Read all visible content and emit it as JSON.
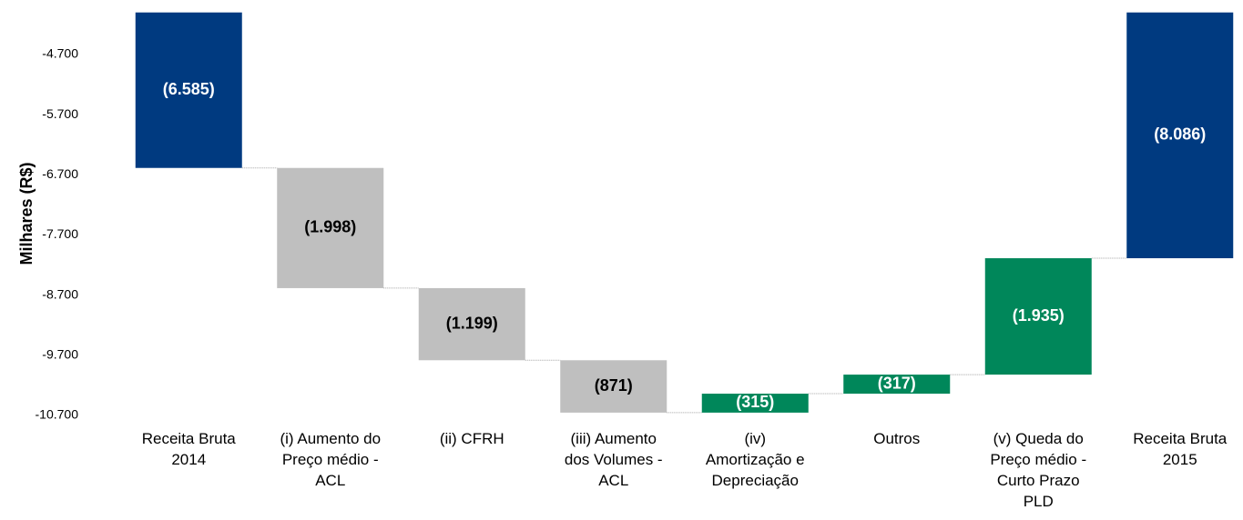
{
  "chart_data": {
    "type": "waterfall",
    "y_axis_label": "Milhares (R$)",
    "categories": [
      "Receita Bruta\n2014",
      "(i) Aumento do\nPreço médio -\nACL",
      "(ii) CFRH",
      "(iii) Aumento\ndos Volumes -\nACL",
      "(iv)\nAmortização e\nDepreciação",
      "Outros",
      "(v) Queda do\nPreço médio -\nCurto Prazo\nPLD",
      "Receita Bruta\n2015"
    ],
    "measure": [
      "total",
      "relative",
      "relative",
      "relative",
      "relative",
      "relative",
      "relative",
      "total"
    ],
    "values": [
      -6585,
      -1998,
      -1199,
      -871,
      315,
      317,
      1935,
      -8086
    ],
    "value_labels": [
      "(6.585)",
      "(1.998)",
      "(1.199)",
      "(871)",
      "(315)",
      "(317)",
      "(1.935)",
      "(8.086)"
    ],
    "colors": [
      "#003a80",
      "#bfbfbf",
      "#bfbfbf",
      "#bfbfbf",
      "#00875a",
      "#00875a",
      "#00875a",
      "#003a80"
    ],
    "label_colors": [
      "#ffffff",
      "#000000",
      "#000000",
      "#000000",
      "#ffffff",
      "#ffffff",
      "#ffffff",
      "#ffffff"
    ],
    "ylim": [
      -10700,
      -4000
    ],
    "yticks": [
      {
        "value": -10700,
        "label": "-10.700"
      },
      {
        "value": -9700,
        "label": "-9.700"
      },
      {
        "value": -8700,
        "label": "-8.700"
      },
      {
        "value": -7700,
        "label": "-7.700"
      },
      {
        "value": -6700,
        "label": "-6.700"
      },
      {
        "value": -5700,
        "label": "-5.700"
      },
      {
        "value": -4700,
        "label": "-4.700"
      }
    ],
    "connector_color": "#a6a6a6"
  }
}
